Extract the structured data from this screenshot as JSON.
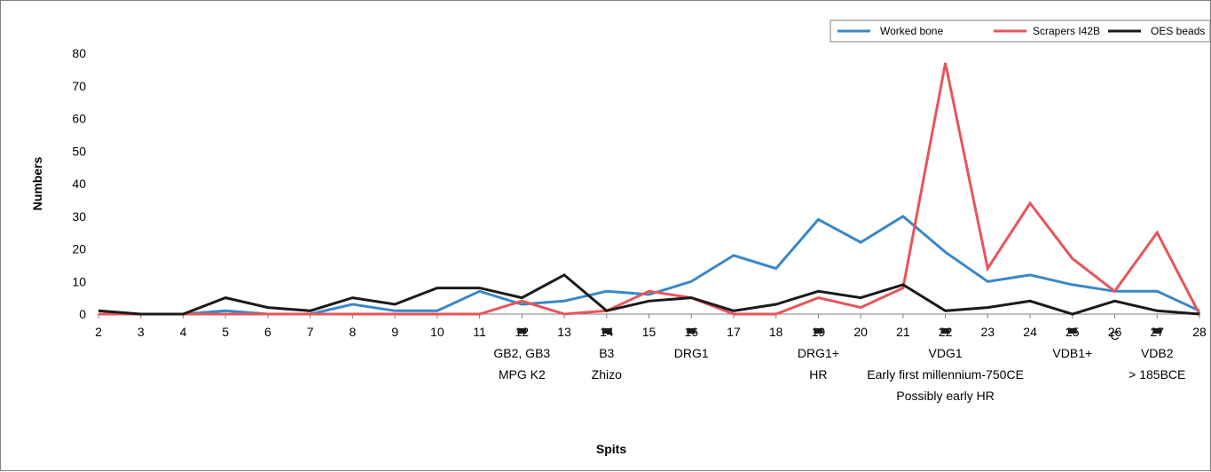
{
  "chart_data": {
    "type": "line",
    "xlabel": "Spits",
    "ylabel": "Numbers",
    "x": [
      2,
      3,
      4,
      5,
      6,
      7,
      8,
      9,
      10,
      11,
      12,
      13,
      14,
      15,
      16,
      17,
      18,
      19,
      20,
      21,
      22,
      23,
      24,
      25,
      26,
      27,
      28
    ],
    "ylim": [
      0,
      80
    ],
    "yticks": [
      0,
      10,
      20,
      30,
      40,
      50,
      60,
      70,
      80
    ],
    "grid": false,
    "legend_position": "top-right",
    "series": [
      {
        "name": "Worked bone",
        "color": "#3a87c8",
        "values": [
          0,
          0,
          0,
          1,
          0,
          0,
          3,
          1,
          1,
          7,
          3,
          4,
          7,
          6,
          10,
          18,
          14,
          29,
          22,
          30,
          19,
          10,
          12,
          9,
          7,
          7,
          1
        ]
      },
      {
        "name": "Scrapers I42B",
        "color": "#e8545a",
        "values": [
          0,
          0,
          0,
          0,
          0,
          0,
          0,
          0,
          0,
          0,
          4,
          0,
          1,
          7,
          5,
          0,
          0,
          5,
          2,
          8,
          77,
          14,
          34,
          17,
          7,
          25,
          0
        ]
      },
      {
        "name": "OES beads",
        "color": "#1a1a1a",
        "values": [
          1,
          0,
          0,
          5,
          2,
          1,
          5,
          3,
          8,
          8,
          5,
          12,
          1,
          4,
          5,
          1,
          3,
          7,
          5,
          9,
          1,
          2,
          4,
          0,
          4,
          1,
          0
        ]
      }
    ],
    "markers": [
      {
        "x": 12,
        "lines": [
          "GB2, GB3",
          "MPG  K2"
        ]
      },
      {
        "x": 14,
        "lines": [
          "B3",
          "Zhizo"
        ]
      },
      {
        "x": 16,
        "lines": [
          "DRG1"
        ]
      },
      {
        "x": 19,
        "lines": [
          "DRG1+",
          "HR"
        ]
      },
      {
        "x": 22,
        "lines": [
          "VDG1",
          "Early first millennium-750CE",
          "Possibly early HR"
        ]
      },
      {
        "x": 25,
        "lines": [
          "VDB1+"
        ]
      },
      {
        "x": 27,
        "lines": [
          "VDB2",
          "> 185BCE"
        ]
      }
    ],
    "extra_labels": [
      {
        "x": 26,
        "text": "C"
      }
    ]
  }
}
